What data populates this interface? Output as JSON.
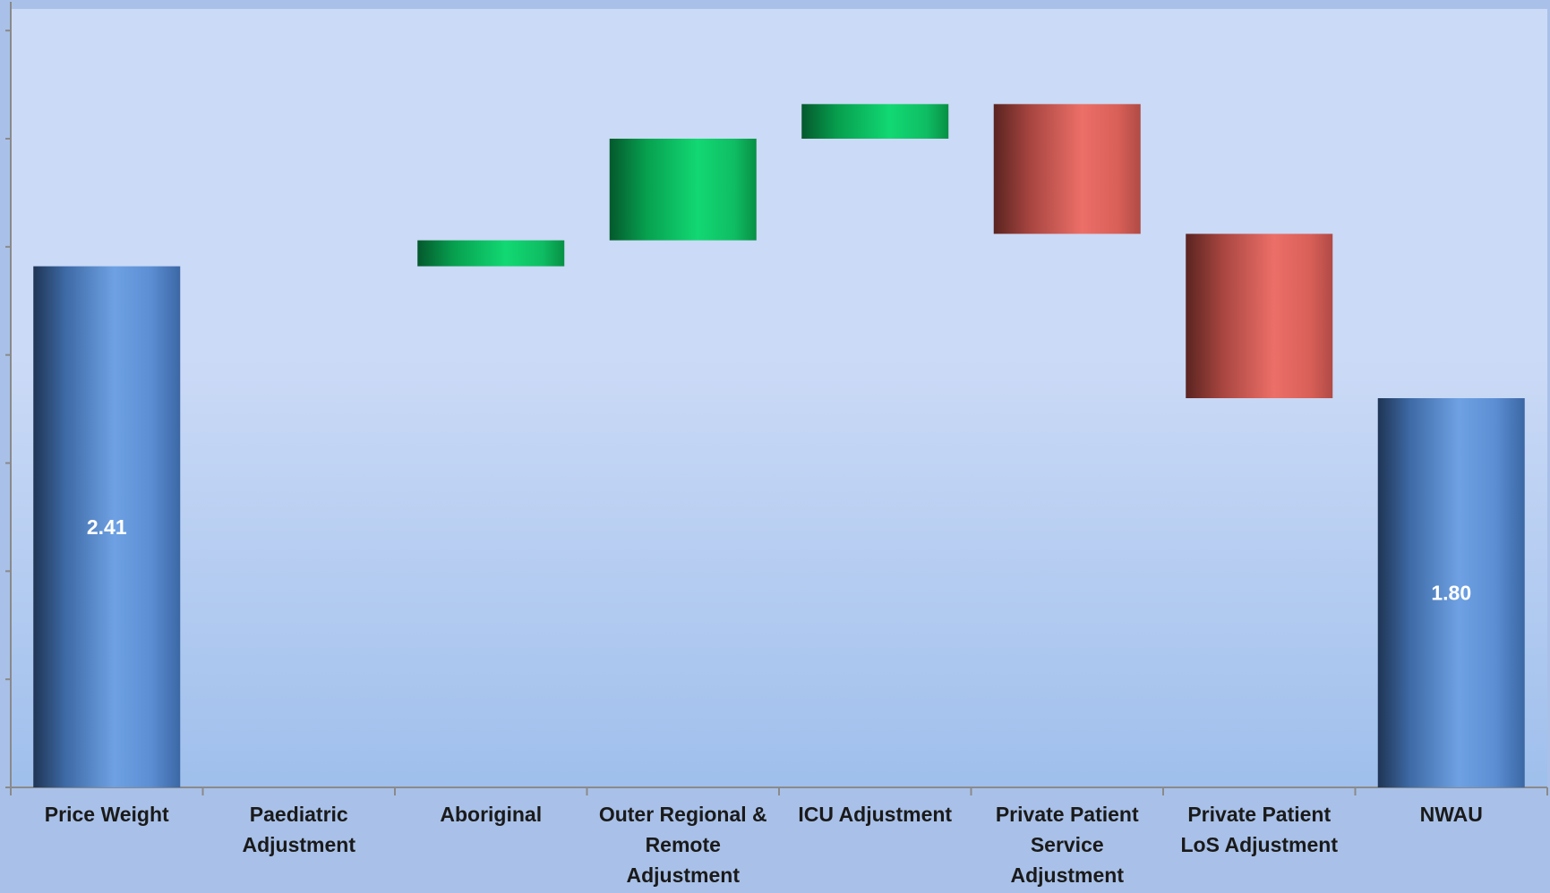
{
  "chart_data": {
    "type": "waterfall",
    "title": "",
    "xlabel": "",
    "ylabel": "",
    "ylim": [
      0,
      3.6
    ],
    "categories": [
      "Price Weight",
      "Paediatric Adjustment",
      "Aboriginal",
      "Outer Regional & Remote Adjustment",
      "ICU Adjustment",
      "Private Patient Service Adjustment",
      "Private Patient LoS Adjustment",
      "NWAU"
    ],
    "category_lines": [
      [
        "Price Weight"
      ],
      [
        "Paediatric",
        "Adjustment"
      ],
      [
        "Aboriginal"
      ],
      [
        "Outer Regional &",
        "Remote",
        "Adjustment"
      ],
      [
        "ICU Adjustment"
      ],
      [
        "Private Patient",
        "Service",
        "Adjustment"
      ],
      [
        "Private Patient",
        "LoS Adjustment"
      ],
      [
        "NWAU"
      ]
    ],
    "bars": [
      {
        "kind": "total",
        "start": 0,
        "end": 2.41,
        "label": "2.41"
      },
      {
        "kind": "increase",
        "start": 2.41,
        "end": 2.41,
        "label": ""
      },
      {
        "kind": "increase",
        "start": 2.41,
        "end": 2.53,
        "label": ""
      },
      {
        "kind": "increase",
        "start": 2.53,
        "end": 3.0,
        "label": ""
      },
      {
        "kind": "increase",
        "start": 3.0,
        "end": 3.16,
        "label": ""
      },
      {
        "kind": "decrease",
        "start": 3.16,
        "end": 2.56,
        "label": ""
      },
      {
        "kind": "decrease",
        "start": 2.56,
        "end": 1.8,
        "label": ""
      },
      {
        "kind": "total",
        "start": 0,
        "end": 1.8,
        "label": "1.80"
      }
    ],
    "colors": {
      "total": "#5a8fd6",
      "increase": "#0fc76a",
      "decrease": "#d9534f",
      "plot_bg_top": "#cbdaf6",
      "plot_bg_bottom": "#9fbfec",
      "outer_bg": "#a9c1e8",
      "axis": "#8a8a8a"
    }
  }
}
